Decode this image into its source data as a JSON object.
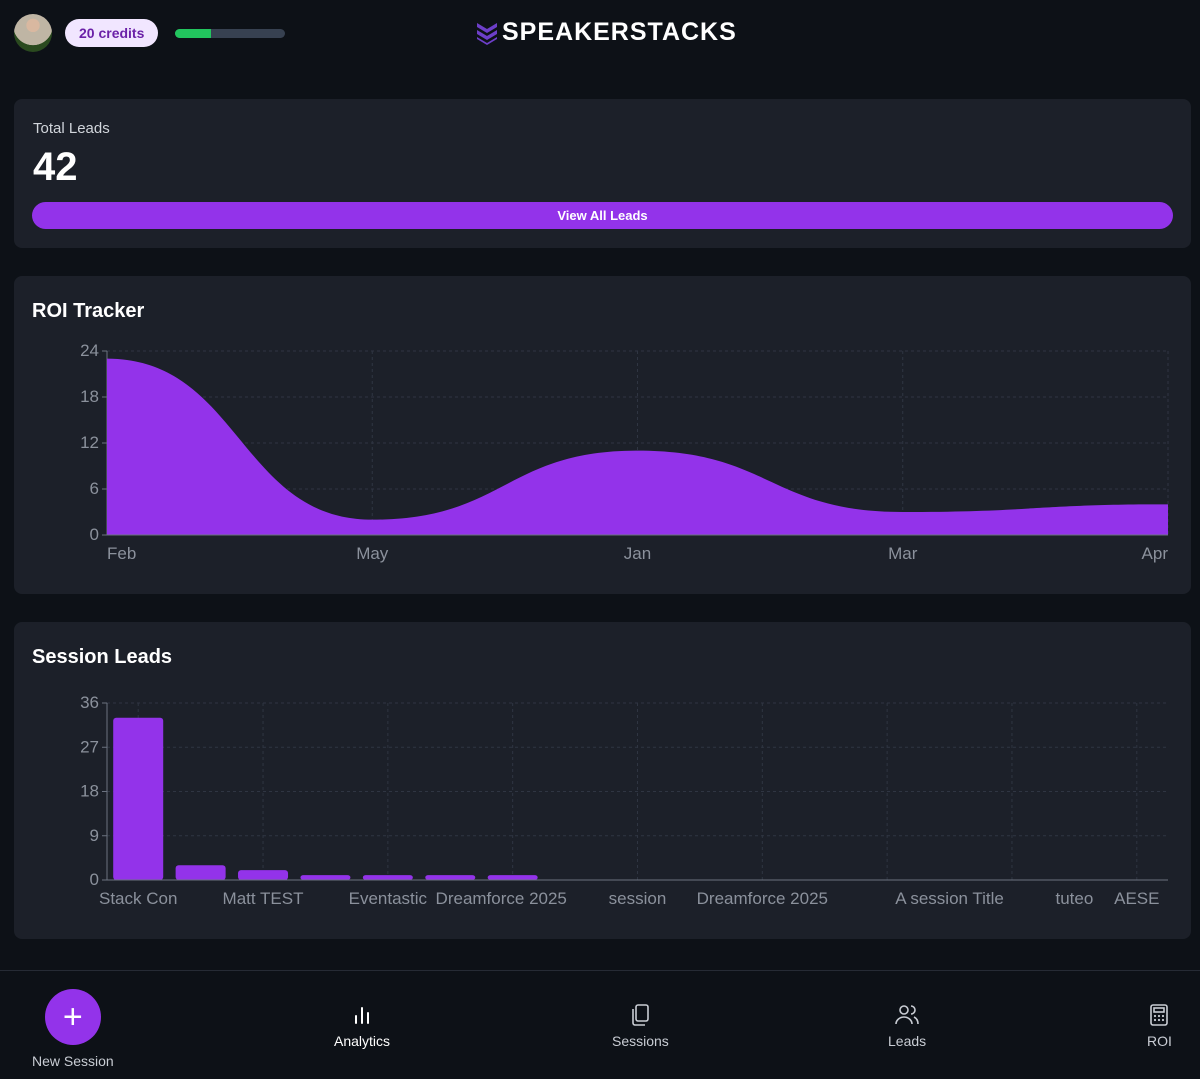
{
  "header": {
    "credits": "20 credits",
    "credits_progress": 0.33,
    "brand": "SPEAKERSTACKS"
  },
  "total_leads": {
    "label": "Total Leads",
    "value": "42",
    "button": "View All Leads"
  },
  "chart_data": [
    {
      "type": "area",
      "title": "ROI Tracker",
      "categories": [
        "Feb",
        "May",
        "Jan",
        "Mar",
        "Apr"
      ],
      "values": [
        23,
        2,
        11,
        3,
        4
      ],
      "yticks": [
        0,
        6,
        12,
        18,
        24
      ],
      "ylim": [
        0,
        24
      ],
      "color": "#9333ea",
      "grid": true
    },
    {
      "type": "bar",
      "title": "Session Leads",
      "categories": [
        "Stack Con",
        "",
        "Matt TEST",
        "",
        "Eventastic",
        "Dreamforce 2025",
        "",
        "",
        "session",
        "",
        "Dreamforce 2025",
        "",
        "",
        "A session Title",
        "",
        "tuteo",
        "AESE"
      ],
      "values": [
        33,
        3,
        2,
        1,
        1,
        1,
        1,
        0,
        0,
        0,
        0,
        0,
        0,
        0,
        0,
        0,
        0
      ],
      "yticks": [
        0,
        9,
        18,
        27,
        36
      ],
      "ylim": [
        0,
        36
      ],
      "color": "#9333ea",
      "grid": true
    }
  ],
  "nav": {
    "new_session": "New Session",
    "analytics": "Analytics",
    "sessions": "Sessions",
    "leads": "Leads",
    "roi": "ROI"
  }
}
